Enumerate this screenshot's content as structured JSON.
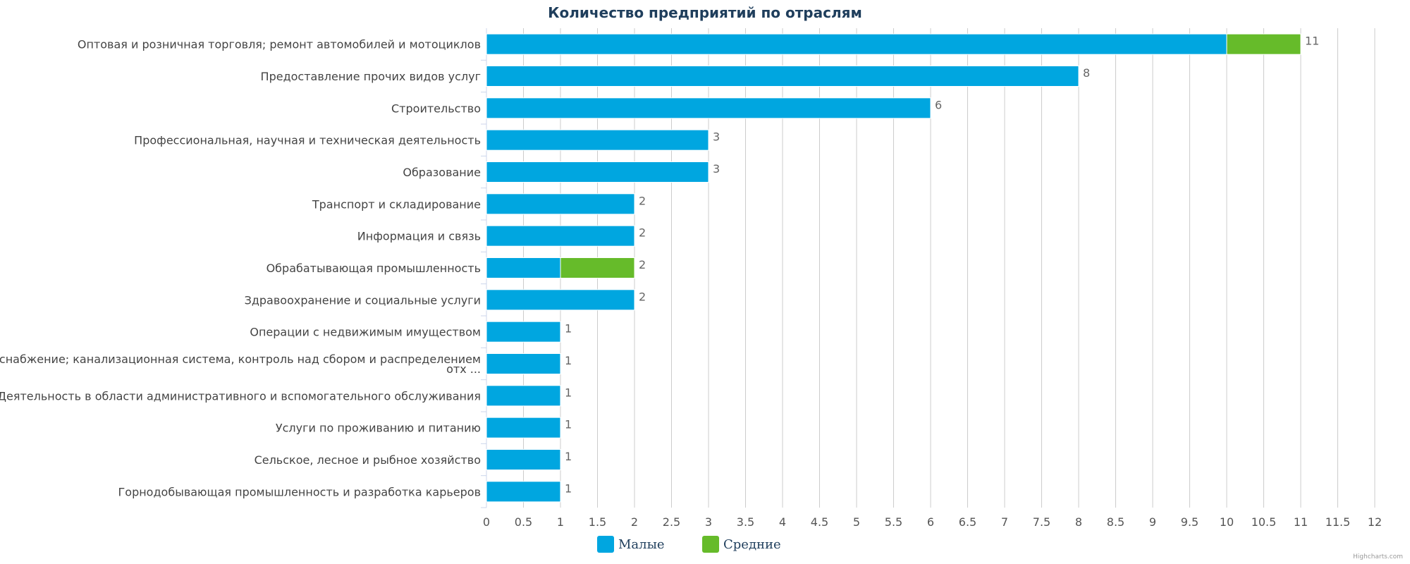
{
  "credits": "Highcharts.com",
  "chart_data": {
    "type": "bar",
    "stacked": true,
    "orientation": "horizontal",
    "title": "Количество предприятий по отраслям",
    "categories": [
      "Оптовая и розничная торговля; ремонт автомобилей и мотоциклов",
      "Предоставление прочих видов услуг",
      "Строительство",
      "Профессиональная, научная и техническая деятельность",
      "Образование",
      "Транспорт и складирование",
      "Информация и связь",
      "Обрабатывающая промышленность",
      "Здравоохранение и социальные услуги",
      "Операции с недвижимым имуществом",
      "Водоснабжение; канализационная система, контроль над сбором и распределением отх ...",
      "Деятельность в области административного и вспомогательного обслуживания",
      "Услуги по проживанию и питанию",
      "Сельское, лесное и рыбное хозяйство",
      "Горнодобывающая промышленность и разработка карьеров"
    ],
    "category_lines": [
      [
        "Оптовая и розничная торговля; ремонт автомобилей и мотоциклов"
      ],
      [
        "Предоставление прочих видов услуг"
      ],
      [
        "Строительство"
      ],
      [
        "Профессиональная, научная и техническая деятельность"
      ],
      [
        "Образование"
      ],
      [
        "Транспорт и складирование"
      ],
      [
        "Информация и связь"
      ],
      [
        "Обрабатывающая промышленность"
      ],
      [
        "Здравоохранение и социальные услуги"
      ],
      [
        "Операции с недвижимым имуществом"
      ],
      [
        "Водоснабжение; канализационная система, контроль над сбором и распределением",
        "отх ..."
      ],
      [
        "Деятельность в области административного и вспомогательного обслуживания"
      ],
      [
        "Услуги по проживанию и питанию"
      ],
      [
        "Сельское, лесное и рыбное хозяйство"
      ],
      [
        "Горнодобывающая промышленность и разработка карьеров"
      ]
    ],
    "series": [
      {
        "name": "Малые",
        "color": "#00a6e0",
        "values": [
          10,
          8,
          6,
          3,
          3,
          2,
          2,
          1,
          2,
          1,
          1,
          1,
          1,
          1,
          1
        ]
      },
      {
        "name": "Средние",
        "color": "#66bb2a",
        "values": [
          1,
          0,
          0,
          0,
          0,
          0,
          0,
          1,
          0,
          0,
          0,
          0,
          0,
          0,
          0
        ]
      }
    ],
    "totals": [
      11,
      8,
      6,
      3,
      3,
      2,
      2,
      2,
      2,
      1,
      1,
      1,
      1,
      1,
      1
    ],
    "xlim": [
      0,
      12
    ],
    "tick_step": 0.5,
    "tick_labels": [
      "0",
      "0.5",
      "1",
      "1.5",
      "2",
      "2.5",
      "3",
      "3.5",
      "4",
      "4.5",
      "5",
      "5.5",
      "6",
      "6.5",
      "7",
      "7.5",
      "8",
      "8.5",
      "9",
      "9.5",
      "10",
      "10.5",
      "11",
      "11.5",
      "12"
    ],
    "grid": true,
    "legend_position": "bottom-center"
  }
}
